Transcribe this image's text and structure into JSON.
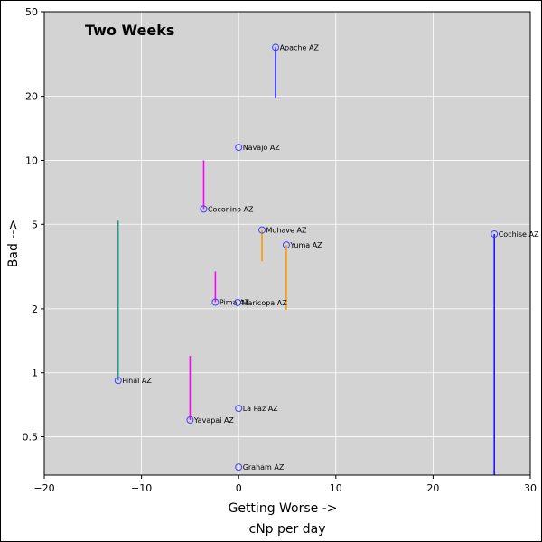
{
  "chart_data": {
    "type": "scatter",
    "title": "Two Weeks",
    "xlabel": "Getting Worse ->",
    "subtitle": "cNp per day",
    "ylabel": "Bad -->",
    "xlim": [
      -20,
      30
    ],
    "ylim": [
      0.33,
      50
    ],
    "yscale": "log",
    "grid": true,
    "background": "#d3d3d3",
    "grid_color": "#ffffff",
    "marker_color": "#4040ff",
    "x_ticks": [
      -20,
      -10,
      0,
      10,
      20,
      30
    ],
    "x_tick_labels": [
      "−20",
      "−10",
      "0",
      "10",
      "20",
      "30"
    ],
    "y_ticks": [
      0.5,
      1,
      2,
      5,
      10,
      20,
      50
    ],
    "y_tick_labels": [
      "0.5",
      "1",
      "2",
      "5",
      "10",
      "20",
      "50"
    ],
    "points": [
      {
        "label": "Apache AZ",
        "x": 3.8,
        "y": 34,
        "tail_y": 19.5,
        "tail_color": "#1a1aff"
      },
      {
        "label": "Navajo AZ",
        "x": 0,
        "y": 11.5
      },
      {
        "label": "Coconino AZ",
        "x": -3.6,
        "y": 5.9,
        "tail_y": 10,
        "tail_color": "#ff00ff"
      },
      {
        "label": "Mohave AZ",
        "x": 2.4,
        "y": 4.7,
        "tail_y": 3.35,
        "tail_color": "#ff9900"
      },
      {
        "label": "Yuma AZ",
        "x": 4.9,
        "y": 4.0,
        "tail_y": 1.98,
        "tail_color": "#ff9900"
      },
      {
        "label": "Cochise AZ",
        "x": 26.3,
        "y": 4.5,
        "tail_y": 0.33,
        "tail_color": "#1a1aff"
      },
      {
        "label": "Pinal AZ",
        "x": -12.4,
        "y": 0.92,
        "tail_y": 5.2,
        "tail_color": "#2a9d8f"
      },
      {
        "label": "Pima AZ",
        "x": -2.4,
        "y": 2.15,
        "tail_y": 3.0,
        "tail_color": "#ff00ff"
      },
      {
        "label": "Maricopa AZ",
        "x": -0.1,
        "y": 2.14
      },
      {
        "label": "Yavapai AZ",
        "x": -5.0,
        "y": 0.6,
        "tail_y": 1.2,
        "tail_color": "#ff00ff"
      },
      {
        "label": "La Paz AZ",
        "x": 0,
        "y": 0.68
      },
      {
        "label": "Graham AZ",
        "x": 0,
        "y": 0.36
      }
    ]
  }
}
